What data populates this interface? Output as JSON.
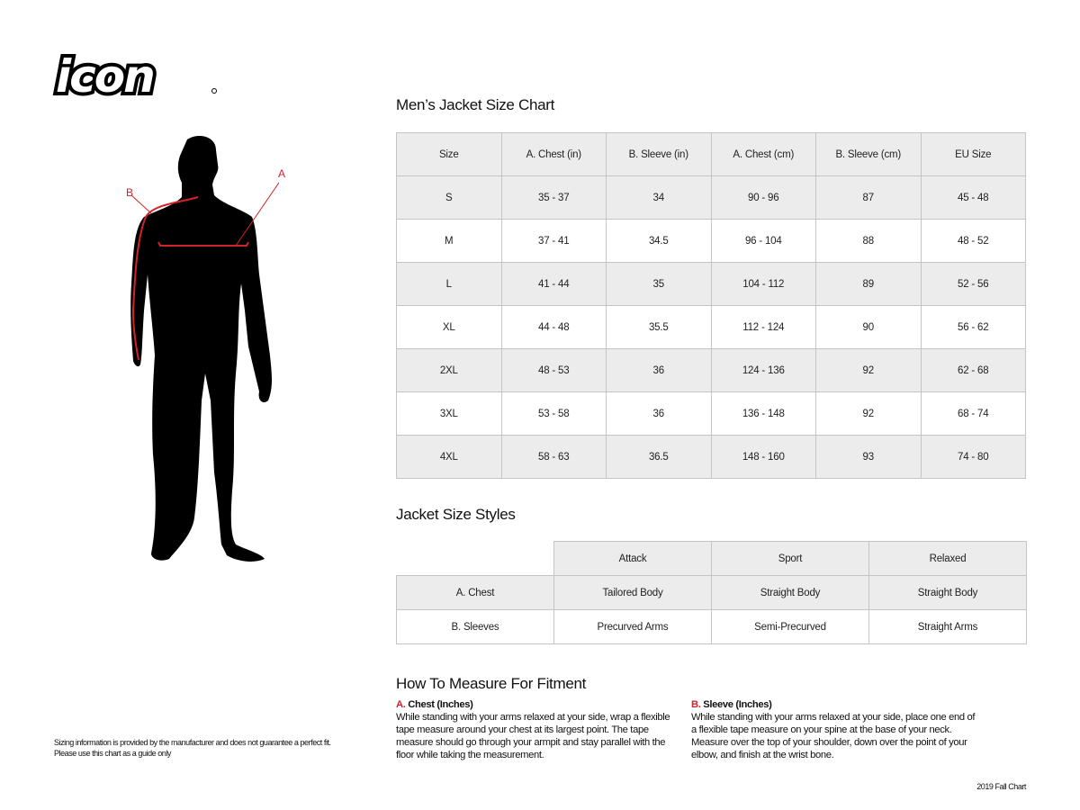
{
  "logo": {
    "text": "icon"
  },
  "figure": {
    "label_a": "A",
    "label_b": "B"
  },
  "size_chart": {
    "title": "Men’s Jacket Size Chart",
    "headers": [
      "Size",
      "A. Chest (in)",
      "B. Sleeve (in)",
      "A. Chest (cm)",
      "B. Sleeve (cm)",
      "EU Size"
    ],
    "rows": [
      [
        "S",
        "35 - 37",
        "34",
        "90 - 96",
        "87",
        "45 - 48"
      ],
      [
        "M",
        "37 - 41",
        "34.5",
        "96 - 104",
        "88",
        "48 - 52"
      ],
      [
        "L",
        "41 - 44",
        "35",
        "104 - 112",
        "89",
        "52 - 56"
      ],
      [
        "XL",
        "44 - 48",
        "35.5",
        "112 - 124",
        "90",
        "56 - 62"
      ],
      [
        "2XL",
        "48 - 53",
        "36",
        "124 - 136",
        "92",
        "62 - 68"
      ],
      [
        "3XL",
        "53 - 58",
        "36",
        "136 - 148",
        "92",
        "68 - 74"
      ],
      [
        "4XL",
        "58 - 63",
        "36.5",
        "148 - 160",
        "93",
        "74 - 80"
      ]
    ]
  },
  "styles": {
    "title": "Jacket Size Styles",
    "headers": [
      "",
      "Attack",
      "Sport",
      "Relaxed"
    ],
    "rows": [
      [
        "A. Chest",
        "Tailored Body",
        "Straight Body",
        "Straight Body"
      ],
      [
        "B. Sleeves",
        "Precurved Arms",
        "Semi-Precurved",
        "Straight Arms"
      ]
    ]
  },
  "measure": {
    "title": "How To Measure For Fitment",
    "a": {
      "letter": "A.",
      "heading": "Chest (Inches)",
      "text": "While standing with your arms relaxed at your side, wrap a flexible tape measure around your chest at its largest point. The tape measure should go through your armpit and stay parallel with the floor while taking the measurement."
    },
    "b": {
      "letter": "B.",
      "heading": "Sleeve (Inches)",
      "text": "While standing with your arms relaxed at your side, place one end of a flexible tape measure on your spine at the base of your neck. Measure over the top of your shoulder, down over the point of your elbow, and finish at the wrist bone."
    }
  },
  "disclaimer": {
    "line1": "Sizing information is provided by the manufacturer and does not guarantee a perfect fit.",
    "line2": "Please use this chart as a guide only"
  },
  "footer": {
    "edition": "2019 Fall Chart"
  },
  "colors": {
    "accent": "#d2232a",
    "row_shade": "#ececec",
    "border": "#c4c4c4"
  }
}
